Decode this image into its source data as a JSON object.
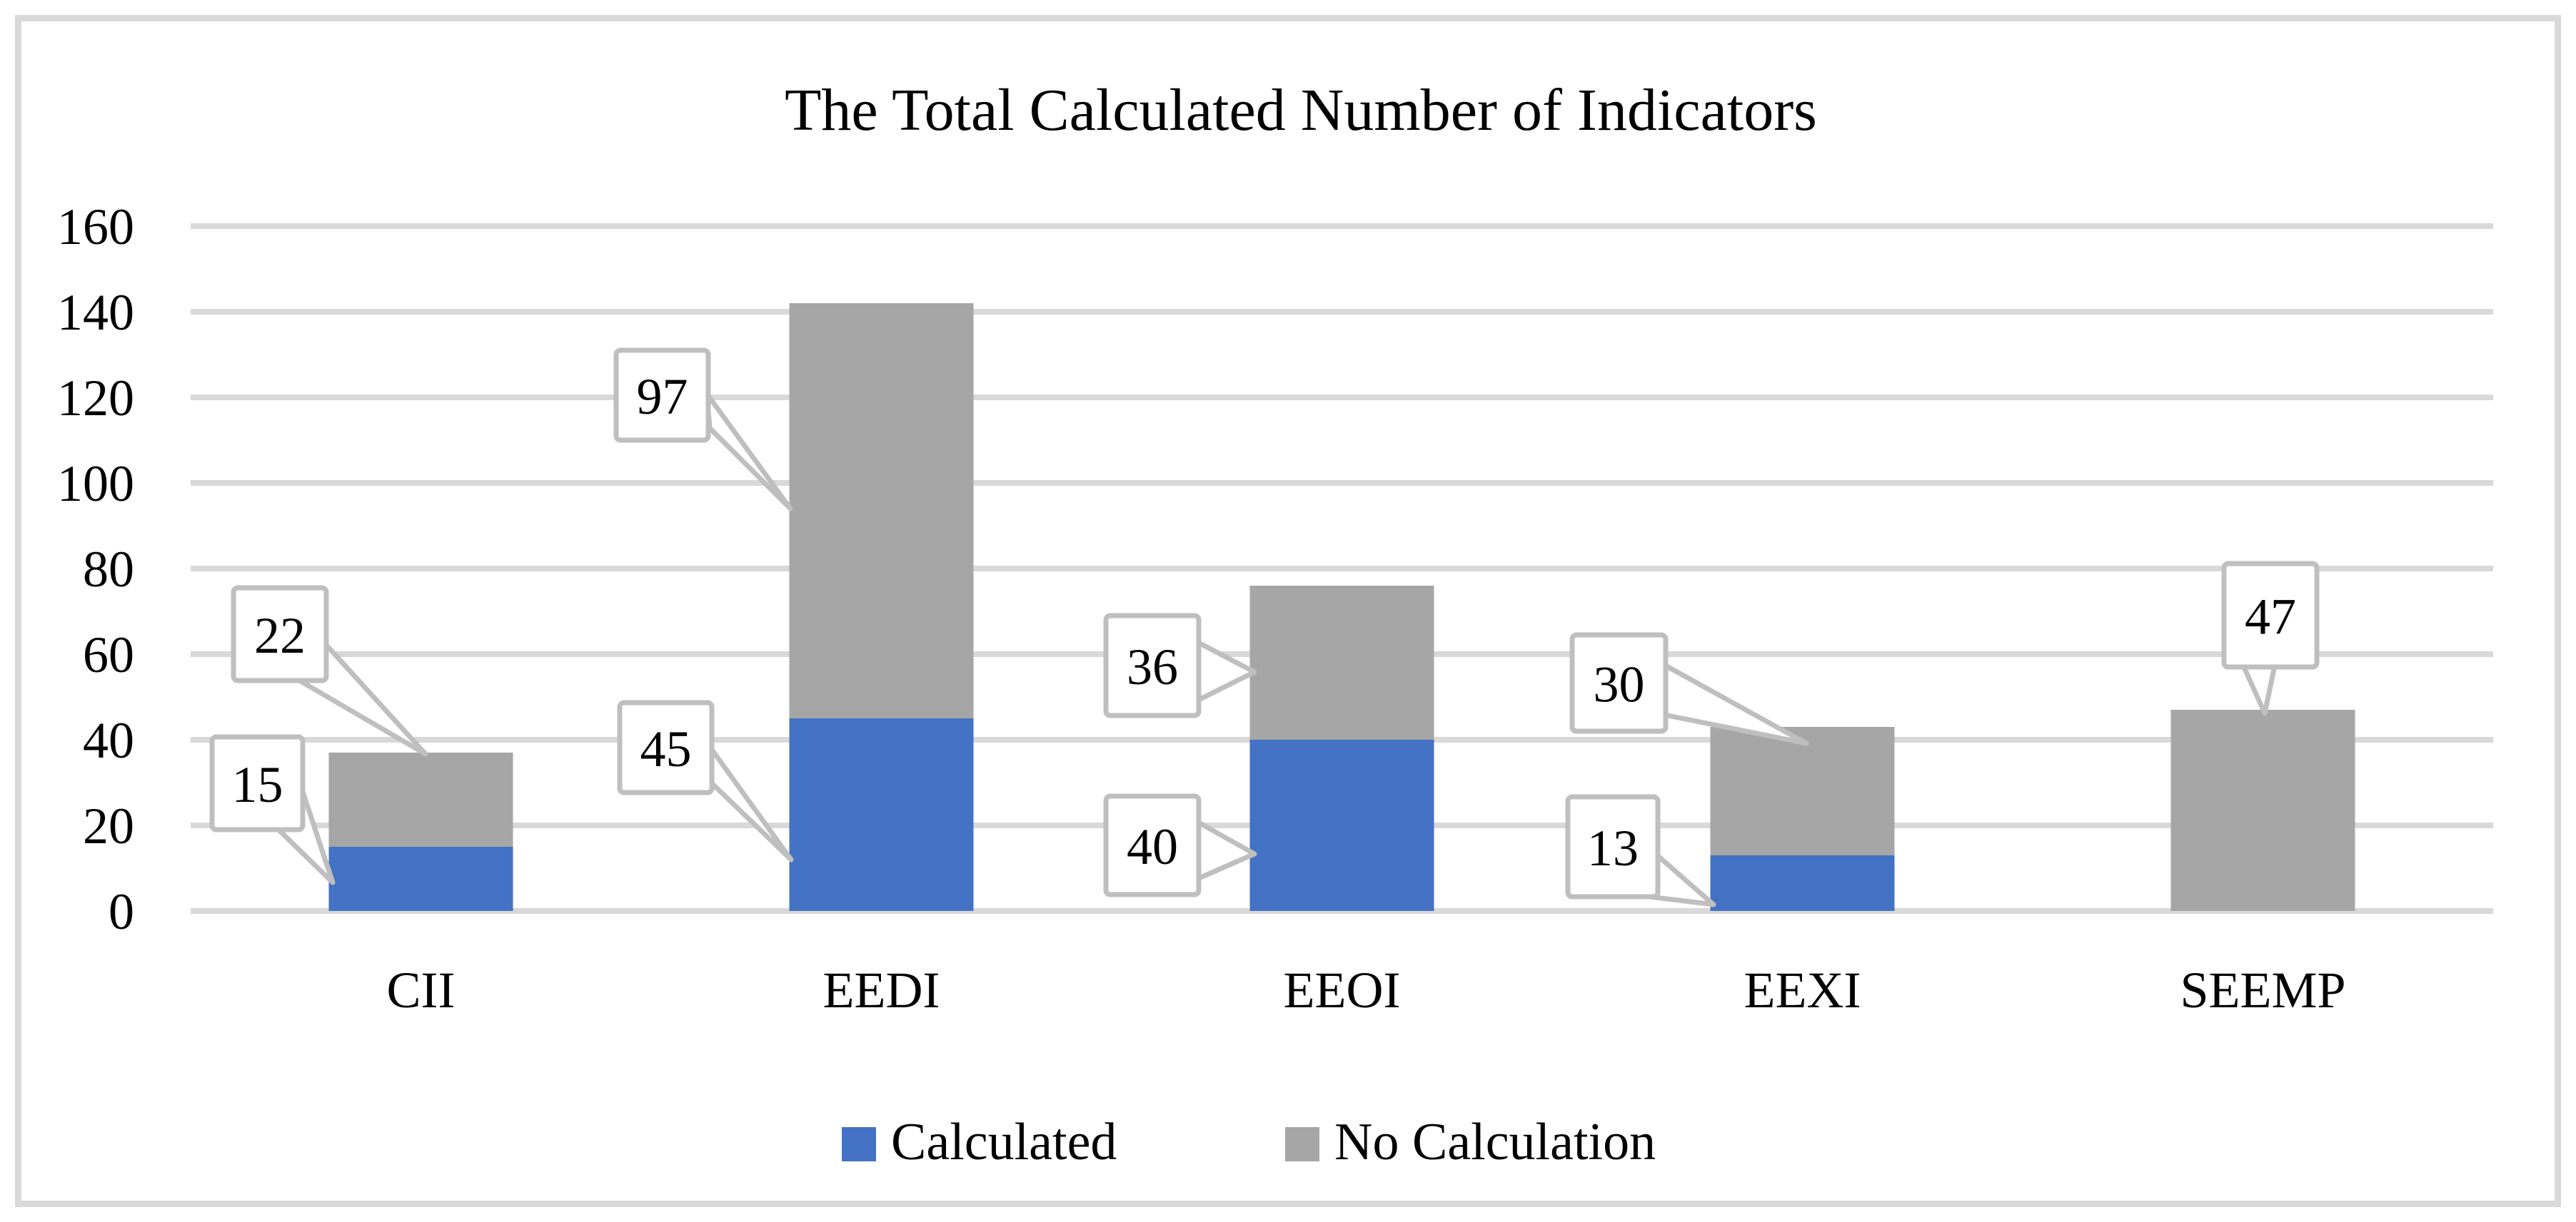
{
  "chart_data": {
    "type": "bar",
    "stacked": true,
    "title": "The Total Calculated Number of Indicators",
    "categories": [
      "CII",
      "EEDI",
      "EEOI",
      "EEXI",
      "SEEMP"
    ],
    "series": [
      {
        "name": "Calculated",
        "color": "#4472C4",
        "values": [
          15,
          45,
          40,
          13,
          0
        ]
      },
      {
        "name": "No Calculation",
        "color": "#A6A6A6",
        "values": [
          22,
          97,
          36,
          30,
          47
        ]
      }
    ],
    "ylim": [
      0,
      160
    ],
    "ytick_step": 20,
    "yticks": [
      0,
      20,
      40,
      60,
      80,
      100,
      120,
      140,
      160
    ],
    "grid": true,
    "legend_position": "bottom",
    "data_labels": [
      {
        "category": "CII",
        "series": "Calculated",
        "value": 15
      },
      {
        "category": "CII",
        "series": "No Calculation",
        "value": 22
      },
      {
        "category": "EEDI",
        "series": "Calculated",
        "value": 45
      },
      {
        "category": "EEDI",
        "series": "No Calculation",
        "value": 97
      },
      {
        "category": "EEOI",
        "series": "Calculated",
        "value": 40
      },
      {
        "category": "EEOI",
        "series": "No Calculation",
        "value": 36
      },
      {
        "category": "EEXI",
        "series": "Calculated",
        "value": 13
      },
      {
        "category": "EEXI",
        "series": "No Calculation",
        "value": 30
      },
      {
        "category": "SEEMP",
        "series": "No Calculation",
        "value": 47
      }
    ]
  },
  "colors": {
    "calculated": "#4472C4",
    "no_calculation": "#A6A6A6",
    "gridline": "#D9D9D9",
    "frame_border": "#D9D9D9",
    "callout_border": "#BFBFBF",
    "callout_fill": "#FFFFFF",
    "text": "#000000",
    "background": "#FFFFFF"
  }
}
